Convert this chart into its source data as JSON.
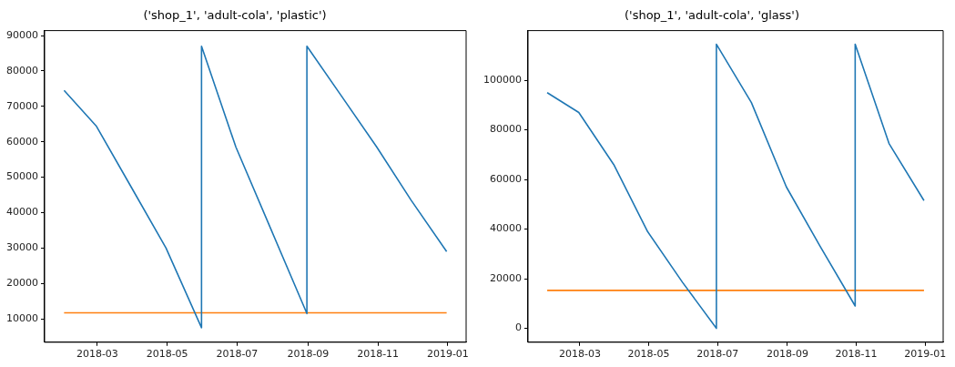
{
  "chart_data": [
    {
      "type": "line",
      "title": "('shop_1', 'adult-cola', 'plastic')",
      "xlim": [
        "2018-01-14",
        "2019-01-17"
      ],
      "xticks": [
        "2018-03",
        "2018-05",
        "2018-07",
        "2018-09",
        "2018-11",
        "2019-01"
      ],
      "ylim": [
        3400,
        91400
      ],
      "yticks": [
        10000,
        20000,
        30000,
        40000,
        50000,
        60000,
        70000,
        80000,
        90000
      ],
      "grid": false,
      "legend": false,
      "series": [
        {
          "color": "#1f77b4",
          "x": [
            "2018-01-31",
            "2018-02-28",
            "2018-03-31",
            "2018-04-30",
            "2018-05-31",
            "2018-05-31",
            "2018-06-30",
            "2018-07-31",
            "2018-08-31",
            "2018-08-31",
            "2018-09-30",
            "2018-10-31",
            "2018-11-30",
            "2018-12-31"
          ],
          "values": [
            74500,
            64500,
            47000,
            30000,
            7500,
            87000,
            58500,
            35000,
            11500,
            87000,
            73000,
            58500,
            43500,
            29000
          ]
        },
        {
          "color": "#ff7f0e",
          "x": [
            "2018-01-31",
            "2018-12-31"
          ],
          "values": [
            11700,
            11700
          ]
        }
      ]
    },
    {
      "type": "line",
      "title": "('shop_1', 'adult-cola', 'glass')",
      "xlim": [
        "2018-01-14",
        "2019-01-17"
      ],
      "xticks": [
        "2018-03",
        "2018-05",
        "2018-07",
        "2018-09",
        "2018-11",
        "2019-01"
      ],
      "ylim": [
        -5600,
        120000
      ],
      "yticks": [
        0,
        20000,
        40000,
        60000,
        80000,
        100000
      ],
      "grid": false,
      "legend": false,
      "series": [
        {
          "color": "#1f77b4",
          "x": [
            "2018-01-31",
            "2018-02-28",
            "2018-03-31",
            "2018-04-30",
            "2018-05-31",
            "2018-06-30",
            "2018-06-30",
            "2018-07-31",
            "2018-08-31",
            "2018-09-30",
            "2018-10-31",
            "2018-10-31",
            "2018-11-30",
            "2018-12-31"
          ],
          "values": [
            95000,
            87000,
            66000,
            39000,
            18500,
            0,
            114500,
            91000,
            57000,
            33000,
            9000,
            114500,
            74500,
            51500
          ]
        },
        {
          "color": "#ff7f0e",
          "x": [
            "2018-01-31",
            "2018-12-31"
          ],
          "values": [
            15300,
            15300
          ]
        }
      ]
    }
  ]
}
